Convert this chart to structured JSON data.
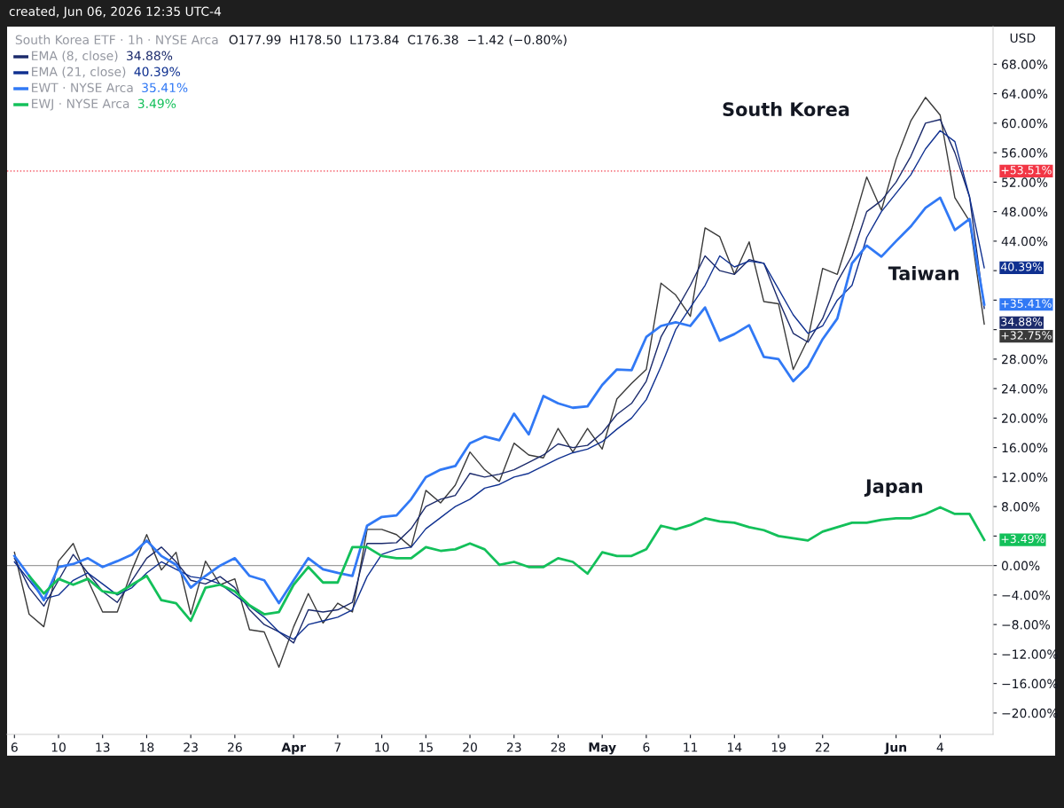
{
  "chart_data": {
    "type": "line",
    "title": "South Korea ETF · 1h · NYSE Arca",
    "subtitle": "O177.99  H178.50  L173.84  C176.38  −1.42 (−0.80%)",
    "ylabel": "USD",
    "annotations": [
      "created, Jun 06, 2026 12:35 UTC-4",
      "South Korea",
      "Taiwan",
      "Japan"
    ],
    "categories": [
      "6",
      null,
      null,
      "10",
      null,
      null,
      "13",
      null,
      null,
      "18",
      null,
      null,
      "23",
      null,
      null,
      "26",
      null,
      null,
      null,
      "Apr",
      null,
      null,
      "7",
      null,
      null,
      "10",
      null,
      null,
      "15",
      null,
      null,
      "20",
      null,
      null,
      "23",
      null,
      null,
      "28",
      null,
      null,
      "May",
      null,
      null,
      "6",
      null,
      null,
      "11",
      null,
      null,
      "14",
      null,
      null,
      "19",
      null,
      null,
      "22",
      null,
      null,
      null,
      null,
      "Jun",
      null,
      null,
      "4",
      null,
      null,
      null
    ],
    "ylim": [
      -22.9,
      73.1
    ],
    "yticks": [
      {
        "value": 68,
        "label": "68.00%"
      },
      {
        "value": 64,
        "label": "64.00%"
      },
      {
        "value": 60,
        "label": "60.00%"
      },
      {
        "value": 56,
        "label": "56.00%"
      },
      {
        "value": 52,
        "label": "52.00%"
      },
      {
        "value": 48,
        "label": "48.00%"
      },
      {
        "value": 44,
        "label": "44.00%"
      },
      {
        "value": 40,
        "label": null
      },
      {
        "value": 36,
        "label": null
      },
      {
        "value": 32,
        "label": null
      },
      {
        "value": 28,
        "label": "28.00%"
      },
      {
        "value": 24,
        "label": "24.00%"
      },
      {
        "value": 20,
        "label": "20.00%"
      },
      {
        "value": 16,
        "label": "16.00%"
      },
      {
        "value": 12,
        "label": "12.00%"
      },
      {
        "value": 8,
        "label": "8.00%"
      },
      {
        "value": 4,
        "label": null
      },
      {
        "value": 0,
        "label": "0.00%"
      },
      {
        "value": -4,
        "label": "−4.00%"
      },
      {
        "value": -8,
        "label": "−8.00%"
      },
      {
        "value": -12,
        "label": "−12.00%"
      },
      {
        "value": -16,
        "label": "−16.00%"
      },
      {
        "value": -20,
        "label": "−20.00%"
      }
    ],
    "ref_lines": [
      {
        "axis": "y",
        "value": 0,
        "label": null,
        "color": "#9e9e9e",
        "line_style": "solid"
      },
      {
        "axis": "y",
        "value": 53.51,
        "label": "+53.51%",
        "color": "#f23645",
        "line_style": "dotted"
      }
    ],
    "legend": "top left",
    "series": [
      {
        "color": "#3a3a3a",
        "values": [
          1.8,
          -6.6,
          -8.3,
          0.6,
          3.0,
          -2.0,
          -6.3,
          -6.3,
          -0.6,
          4.2,
          -0.6,
          1.8,
          -6.6,
          0.6,
          -2.6,
          -1.8,
          -8.7,
          -9.0,
          -13.8,
          -8.3,
          -3.8,
          -7.8,
          -5.1,
          -6.3,
          4.9,
          4.9,
          4.2,
          2.5,
          10.2,
          8.5,
          10.9,
          15.4,
          13.0,
          11.4,
          16.6,
          15.0,
          14.6,
          18.6,
          15.4,
          18.6,
          15.8,
          22.6,
          24.7,
          26.6,
          38.3,
          36.7,
          33.8,
          45.8,
          44.6,
          39.5,
          43.9,
          35.8,
          35.5,
          26.6,
          30.7,
          40.3,
          39.5,
          45.8,
          52.7,
          48.2,
          55.1,
          60.3,
          63.5,
          61.1,
          49.9,
          46.7,
          32.75
        ],
        "value_labels": [
          null,
          null,
          null,
          null,
          null,
          null,
          null,
          null,
          null,
          null,
          null,
          null,
          null,
          null,
          null,
          null,
          null,
          null,
          null,
          null,
          null,
          null,
          null,
          null,
          null,
          null,
          null,
          null,
          null,
          null,
          null,
          null,
          null,
          null,
          null,
          null,
          null,
          null,
          null,
          null,
          null,
          null,
          null,
          null,
          null,
          null,
          null,
          null,
          null,
          null,
          null,
          null,
          null,
          null,
          null,
          null,
          null,
          null,
          null,
          null,
          null,
          null,
          null,
          null,
          null,
          null,
          "+32.75%"
        ]
      },
      {
        "name": "EMA (8, close)  34.88%",
        "color": "#1b2a6b",
        "values": [
          1.0,
          -3.0,
          -5.5,
          -2.0,
          1.5,
          -1.0,
          -3.5,
          -5.0,
          -2.0,
          1.0,
          2.5,
          0.5,
          -2.0,
          -2.5,
          -1.5,
          -3.0,
          -6.0,
          -8.0,
          -9.0,
          -10.5,
          -6.0,
          -6.3,
          -6.0,
          -5.0,
          3.0,
          3.0,
          3.1,
          5.0,
          8.0,
          9.0,
          9.5,
          12.5,
          12.0,
          12.4,
          13.0,
          14.0,
          15.0,
          16.5,
          16.0,
          16.3,
          18.0,
          20.5,
          22.0,
          25.0,
          31.0,
          34.5,
          38.0,
          42.0,
          40.0,
          39.5,
          41.5,
          41.0,
          36.0,
          31.5,
          30.3,
          33.5,
          38.5,
          42.0,
          48.0,
          49.5,
          52.0,
          55.5,
          60.0,
          60.5,
          56.0,
          50.0,
          34.88
        ],
        "value_labels": [
          null,
          null,
          null,
          null,
          null,
          null,
          null,
          null,
          null,
          null,
          null,
          null,
          null,
          null,
          null,
          null,
          null,
          null,
          null,
          null,
          null,
          null,
          null,
          null,
          null,
          null,
          null,
          null,
          null,
          null,
          null,
          null,
          null,
          null,
          null,
          null,
          null,
          null,
          null,
          null,
          null,
          null,
          null,
          null,
          null,
          null,
          null,
          null,
          null,
          null,
          null,
          null,
          null,
          null,
          null,
          null,
          null,
          null,
          null,
          null,
          null,
          null,
          null,
          null,
          null,
          null,
          "34.88%"
        ]
      },
      {
        "name": "EMA (21, close)  40.39%",
        "color": "#0f3090",
        "values": [
          0.5,
          -2.0,
          -4.5,
          -4.0,
          -2.0,
          -1.0,
          -2.5,
          -4.0,
          -3.0,
          -1.0,
          0.5,
          -0.5,
          -1.5,
          -1.8,
          -2.5,
          -4.0,
          -5.5,
          -7.0,
          -9.0,
          -10.0,
          -8.0,
          -7.5,
          -7.0,
          -6.0,
          -1.5,
          1.5,
          2.2,
          2.5,
          5.0,
          6.5,
          8.0,
          9.0,
          10.5,
          11.0,
          12.0,
          12.5,
          13.5,
          14.5,
          15.3,
          15.8,
          16.8,
          18.5,
          20.0,
          22.5,
          27.0,
          32.0,
          35.0,
          38.0,
          42.0,
          40.5,
          41.3,
          41.0,
          37.5,
          34.0,
          31.5,
          32.5,
          36.0,
          38.0,
          44.5,
          48.0,
          50.5,
          53.0,
          56.5,
          59.0,
          57.5,
          50.0,
          40.39
        ],
        "value_labels": [
          null,
          null,
          null,
          null,
          null,
          null,
          null,
          null,
          null,
          null,
          null,
          null,
          null,
          null,
          null,
          null,
          null,
          null,
          null,
          null,
          null,
          null,
          null,
          null,
          null,
          null,
          null,
          null,
          null,
          null,
          null,
          null,
          null,
          null,
          null,
          null,
          null,
          null,
          null,
          null,
          null,
          null,
          null,
          null,
          null,
          null,
          null,
          null,
          null,
          null,
          null,
          null,
          null,
          null,
          null,
          null,
          null,
          null,
          null,
          null,
          null,
          null,
          null,
          null,
          null,
          null,
          "40.39%"
        ]
      },
      {
        "name": "EWT · NYSE Arca  35.41%",
        "color": "#3179f5",
        "values": [
          1.3,
          -1.4,
          -4.7,
          -0.2,
          0.2,
          1.0,
          -0.2,
          0.6,
          1.5,
          3.4,
          1.3,
          0.1,
          -3.0,
          -1.4,
          0.0,
          1.0,
          -1.4,
          -2.0,
          -5.1,
          -2.0,
          1.0,
          -0.5,
          -1.0,
          -1.4,
          5.4,
          6.6,
          6.8,
          9.0,
          12.0,
          13.0,
          13.5,
          16.6,
          17.5,
          17.0,
          20.6,
          17.8,
          23.0,
          22.0,
          21.4,
          21.6,
          24.5,
          26.6,
          26.5,
          31.0,
          32.5,
          33.0,
          32.5,
          35.0,
          30.5,
          31.4,
          32.6,
          28.3,
          28.0,
          25.0,
          27.0,
          30.7,
          33.5,
          41.0,
          43.4,
          41.9,
          44.0,
          46.0,
          48.5,
          49.9,
          45.5,
          47.0,
          35.41
        ],
        "value_labels": [
          null,
          null,
          null,
          null,
          null,
          null,
          null,
          null,
          null,
          null,
          null,
          null,
          null,
          null,
          null,
          null,
          null,
          null,
          null,
          null,
          null,
          null,
          null,
          null,
          null,
          null,
          null,
          null,
          null,
          null,
          null,
          null,
          null,
          null,
          null,
          null,
          null,
          null,
          null,
          null,
          null,
          null,
          null,
          null,
          null,
          null,
          null,
          null,
          null,
          null,
          null,
          null,
          null,
          null,
          null,
          null,
          null,
          null,
          null,
          null,
          null,
          null,
          null,
          null,
          null,
          null,
          "+35.41%"
        ]
      },
      {
        "name": "EWJ · NYSE Arca  3.49%",
        "color": "#13c05a",
        "values": [
          null,
          -1.4,
          -3.8,
          -1.8,
          -2.6,
          -1.8,
          -3.5,
          -3.8,
          -2.6,
          -1.4,
          -4.7,
          -5.1,
          -7.5,
          -3.0,
          -2.6,
          -3.5,
          -5.4,
          -6.6,
          -6.3,
          -2.6,
          -0.2,
          -2.3,
          -2.3,
          2.5,
          2.5,
          1.3,
          1.0,
          1.0,
          2.5,
          2.0,
          2.2,
          3.0,
          2.2,
          0.1,
          0.5,
          -0.2,
          -0.2,
          1.0,
          0.5,
          -1.1,
          1.8,
          1.3,
          1.3,
          2.2,
          5.4,
          4.9,
          5.5,
          6.4,
          6.0,
          5.8,
          5.2,
          4.8,
          4.0,
          3.7,
          3.4,
          4.6,
          5.2,
          5.8,
          5.8,
          6.2,
          6.4,
          6.4,
          7.0,
          7.9,
          7.0,
          7.0,
          3.49
        ],
        "value_labels": [
          null,
          null,
          null,
          null,
          null,
          null,
          null,
          null,
          null,
          null,
          null,
          null,
          null,
          null,
          null,
          null,
          null,
          null,
          null,
          null,
          null,
          null,
          null,
          null,
          null,
          null,
          null,
          null,
          null,
          null,
          null,
          null,
          null,
          null,
          null,
          null,
          null,
          null,
          null,
          null,
          null,
          null,
          null,
          null,
          null,
          null,
          null,
          null,
          null,
          null,
          null,
          null,
          null,
          null,
          null,
          null,
          null,
          null,
          null,
          null,
          null,
          null,
          null,
          null,
          null,
          null,
          "+3.49%"
        ]
      }
    ]
  }
}
